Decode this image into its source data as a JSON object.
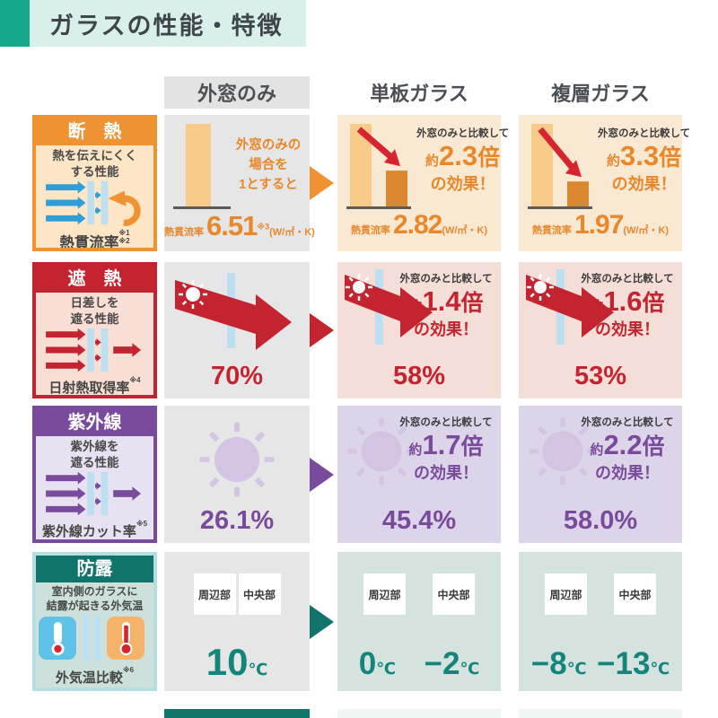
{
  "page": {
    "title": "ガラスの性能・特徴",
    "accent": "#14a98d",
    "title_bg": "#d9f0ea",
    "pane": "#bcdff2",
    "red": "#d6252e",
    "footer_strip_dark": "#0e756b",
    "footer_strip_light": "#eef5f2"
  },
  "columns": {
    "baseline": "外窓のみ",
    "single": "単板ガラス",
    "double": "複層ガラス"
  },
  "rows": [
    {
      "name": "insulation",
      "header": "断　熱",
      "desc": "熱を伝えにくく\nする性能",
      "metric": "熱貫流率",
      "metric_note": "※1\n※2",
      "colors": {
        "accent": "#ef9332",
        "icon": "#2f9ed6",
        "tint": "#fce6c6",
        "cell": "#f9e8d2",
        "text": "#e8882b",
        "bar_light": "#f8cb8a",
        "bar_dark": "#d9882f"
      },
      "baseline": {
        "note": "外窓のみの\n場合を\n1とすると",
        "metric": "熱貫流率",
        "value": "6.51",
        "value_note": "※3",
        "unit": "(W/㎡・K)"
      },
      "single": {
        "compare": "外窓のみと比較して",
        "approx": "約",
        "factor": "2.3",
        "times": "倍",
        "effect": "の効果！",
        "metric": "熱貫流率",
        "value": "2.82",
        "unit": "(W/㎡・K)"
      },
      "double": {
        "compare": "外窓のみと比較して",
        "approx": "約",
        "factor": "3.3",
        "times": "倍",
        "effect": "の効果！",
        "metric": "熱貫流率",
        "value": "1.97",
        "unit": "(W/㎡・K)"
      }
    },
    {
      "name": "heat-shielding",
      "header": "遮　熱",
      "desc": "日差しを\n遮る性能",
      "metric": "日射熱取得率",
      "metric_note": "※4",
      "colors": {
        "accent": "#c32430",
        "icon": "#c32430",
        "tint": "#f8ded4",
        "cell": "#f5ded8",
        "text": "#c32430"
      },
      "baseline": {
        "value": "70%"
      },
      "single": {
        "compare": "外窓のみと比較して",
        "approx": "約",
        "factor": "1.4",
        "times": "倍",
        "effect": "の効果！",
        "value": "58%"
      },
      "double": {
        "compare": "外窓のみと比較して",
        "approx": "約",
        "factor": "1.6",
        "times": "倍",
        "effect": "の効果！",
        "value": "53%"
      }
    },
    {
      "name": "uv-protection",
      "header": "紫外線",
      "desc": "紫外線を\n遮る性能",
      "metric": "紫外線カット率",
      "metric_note": "※5",
      "colors": {
        "accent": "#7a4a9d",
        "icon": "#7a4a9d",
        "tint": "#e8e1f1",
        "cell": "#dcd4e9",
        "text": "#7a4a9d",
        "pie_light": "#d2c4e2"
      },
      "baseline": {
        "value": "26.1%"
      },
      "single": {
        "compare": "外窓のみと比較して",
        "approx": "約",
        "factor": "1.7",
        "times": "倍",
        "effect": "の効果！",
        "value": "45.4%"
      },
      "double": {
        "compare": "外窓のみと比較して",
        "approx": "約",
        "factor": "2.2",
        "times": "倍",
        "effect": "の効果！",
        "value": "58.0%"
      }
    },
    {
      "name": "anti-condensation",
      "header": "防露",
      "desc": "室内側のガラスに\n結露が起きる外気温",
      "metric": "外気温比較",
      "metric_note": "※6",
      "colors": {
        "accent": "#11746c",
        "border": "#b3dfe3",
        "tint": "#cde0db",
        "cell": "#d5e3df",
        "text": "#13857a"
      },
      "labels": {
        "edge": "周辺部",
        "center": "中央部"
      },
      "baseline": {
        "value": "10",
        "unit": "℃"
      },
      "single": {
        "edge": "0",
        "center": "−2",
        "unit": "℃"
      },
      "double": {
        "edge": "−8",
        "center": "−13",
        "unit": "℃"
      }
    }
  ]
}
